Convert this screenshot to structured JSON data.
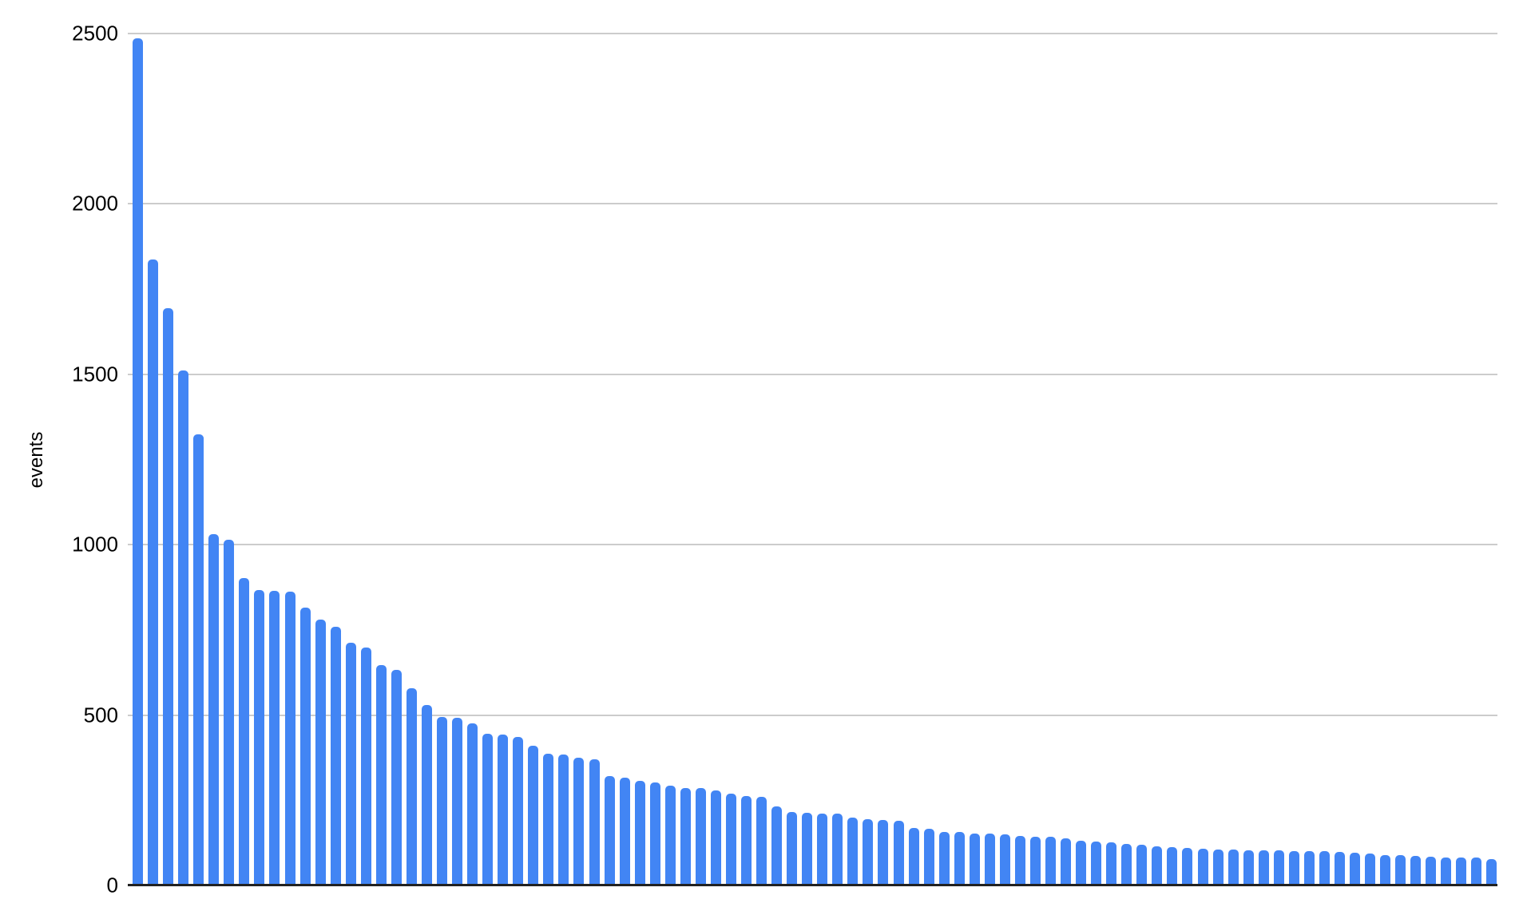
{
  "chart_data": {
    "type": "bar",
    "title": "",
    "xlabel": "",
    "ylabel": "events",
    "ylim": [
      0,
      2500
    ],
    "yticks": [
      0,
      500,
      1000,
      1500,
      2000,
      2500
    ],
    "grid": true,
    "legend": "none",
    "x_tick_labels": "none",
    "bar_color": "#4285f4",
    "values": [
      2485,
      1838,
      1694,
      1512,
      1325,
      1030,
      1014,
      902,
      868,
      865,
      863,
      815,
      781,
      760,
      713,
      699,
      647,
      633,
      578,
      529,
      495,
      493,
      475,
      446,
      442,
      436,
      409,
      387,
      385,
      374,
      371,
      321,
      317,
      308,
      303,
      293,
      286,
      285,
      278,
      270,
      263,
      261,
      233,
      215,
      214,
      211,
      210,
      200,
      194,
      191,
      189,
      168,
      167,
      157,
      156,
      153,
      152,
      149,
      146,
      144,
      142,
      139,
      132,
      128,
      126,
      123,
      120,
      116,
      113,
      110,
      108,
      106,
      105,
      104,
      103,
      102,
      101,
      100,
      100,
      98,
      96,
      93,
      90,
      88,
      86,
      85,
      83,
      82,
      81,
      78
    ]
  },
  "colors": {
    "background": "#ffffff",
    "gridline": "#cccccc",
    "axis_line": "#222222",
    "text": "#000000"
  }
}
